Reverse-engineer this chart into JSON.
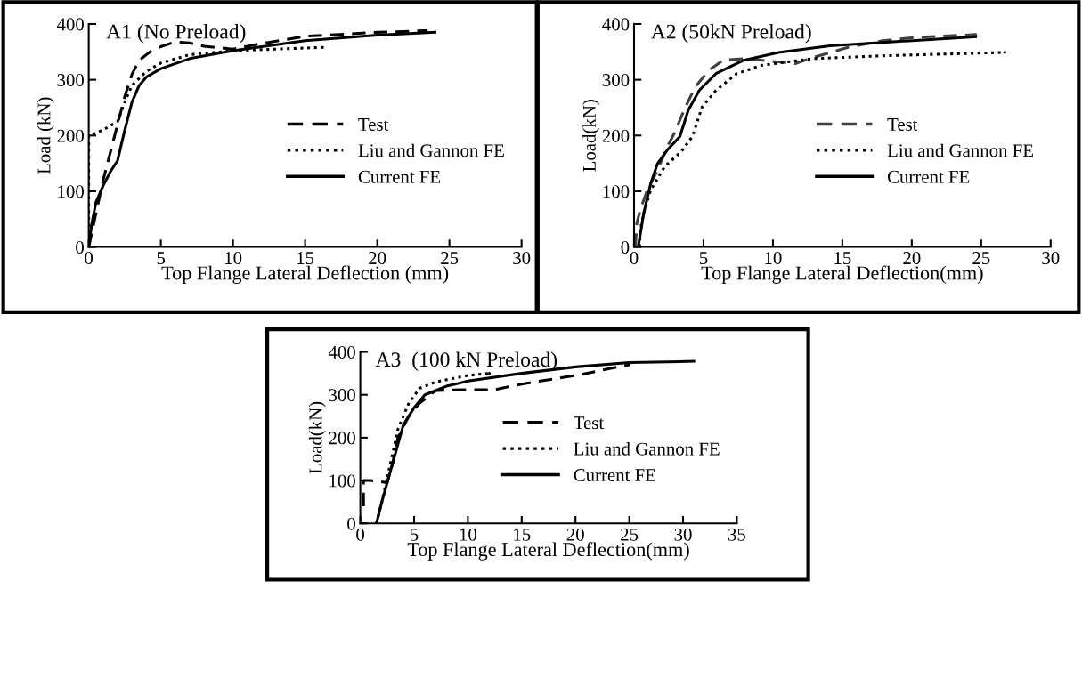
{
  "chart_data": [
    {
      "type": "line",
      "title": "A1 (No Preload)",
      "xlabel": "Top Flange Lateral Deflection (mm)",
      "ylabel": "Load (kN)",
      "xlim": [
        0,
        30
      ],
      "xticks": [
        0,
        5,
        10,
        15,
        20,
        25,
        30
      ],
      "ylim": [
        0,
        400
      ],
      "yticks": [
        0,
        100,
        200,
        300,
        400
      ],
      "legend": "right",
      "grid": false,
      "marker": "none",
      "series": [
        {
          "name": "Test",
          "color": "#000000",
          "line_style": "dashed",
          "x": [
            0,
            0.5,
            1,
            1.5,
            2,
            2.5,
            3,
            3.5,
            4.5,
            6,
            7,
            8,
            10,
            12,
            15,
            20,
            23.4
          ],
          "values": [
            0,
            60,
            120,
            170,
            220,
            270,
            310,
            335,
            355,
            368,
            366,
            360,
            355,
            365,
            378,
            385,
            388
          ]
        },
        {
          "name": "Liu and Gannon FE",
          "color": "#000000",
          "line_style": "dotted",
          "x": [
            0,
            0,
            1,
            2,
            2.5,
            3,
            4,
            5,
            7,
            10,
            13,
            16.2
          ],
          "values": [
            0,
            200,
            210,
            225,
            260,
            290,
            315,
            330,
            345,
            352,
            355,
            358
          ]
        },
        {
          "name": "Current FE",
          "color": "#000000",
          "line_style": "solid",
          "x": [
            0,
            0.2,
            0.5,
            1,
            1.5,
            2,
            2.5,
            3,
            3.5,
            4,
            5,
            7,
            10,
            15,
            20,
            24
          ],
          "values": [
            0,
            40,
            80,
            110,
            135,
            155,
            210,
            260,
            290,
            305,
            320,
            338,
            352,
            370,
            380,
            385
          ]
        }
      ]
    },
    {
      "type": "line",
      "title": "A2 (50kN Preload)",
      "xlabel": "Top Flange Lateral Deflection(mm)",
      "ylabel": "Load(kN)",
      "xlim": [
        0,
        30
      ],
      "xticks": [
        0,
        5,
        10,
        15,
        20,
        25,
        30
      ],
      "ylim": [
        0,
        400
      ],
      "yticks": [
        0,
        100,
        200,
        300,
        400
      ],
      "legend": "right",
      "grid": false,
      "marker": "none",
      "series": [
        {
          "name": "Test",
          "color": "#404040",
          "line_style": "dashed",
          "x": [
            0.1,
            0.2,
            0.45,
            0.95,
            1.7,
            2.4,
            2.9,
            3.7,
            4.4,
            5.4,
            6.4,
            7.9,
            10.4,
            11.6,
            12.9,
            15.4,
            17.9,
            20.3,
            24.6
          ],
          "values": [
            0,
            43,
            67,
            102,
            138,
            180,
            204,
            251,
            287,
            317,
            335,
            338,
            332,
            329,
            340,
            358,
            370,
            376,
            381
          ]
        },
        {
          "name": "Liu and Gannon FE",
          "color": "#000000",
          "line_style": "dotted",
          "x": [
            0.4,
            0.45,
            0.7,
            1.2,
            2.2,
            3.4,
            4.2,
            4.9,
            5.9,
            7.4,
            9.2,
            12.9,
            17.9,
            26.7
          ],
          "values": [
            0,
            31,
            61,
            102,
            144,
            171,
            198,
            251,
            281,
            311,
            326,
            338,
            343,
            349
          ]
        },
        {
          "name": "Current FE",
          "color": "#000000",
          "line_style": "solid",
          "x": [
            0.3,
            0.7,
            1.2,
            1.7,
            2.4,
            3.3,
            3.9,
            4.7,
            5.9,
            7.9,
            10.4,
            14.1,
            17.9,
            24.6
          ],
          "values": [
            0,
            61,
            114,
            150,
            174,
            198,
            245,
            281,
            311,
            335,
            349,
            361,
            367,
            377
          ]
        }
      ]
    },
    {
      "type": "line",
      "title": "A3  (100 kN Preload)",
      "xlabel": "Top Flange Lateral Deflection(mm)",
      "ylabel": "Load(kN)",
      "xlim": [
        0,
        35
      ],
      "xticks": [
        0,
        5,
        10,
        15,
        20,
        25,
        30,
        35
      ],
      "ylim": [
        0,
        400
      ],
      "yticks": [
        0,
        100,
        200,
        300,
        400
      ],
      "legend": "right",
      "grid": false,
      "marker": "none",
      "series": [
        {
          "name": "Test",
          "color": "#000000",
          "line_style": "dashed",
          "x": [
            0.3,
            0.3,
            1,
            2.5,
            3,
            3.5,
            4.5,
            5.5,
            7,
            10,
            12.5,
            15,
            20,
            25
          ],
          "values": [
            40,
            100,
            100,
            95,
            140,
            200,
            250,
            280,
            310,
            312,
            312,
            325,
            345,
            370
          ]
        },
        {
          "name": "Liu and Gannon FE",
          "color": "#000000",
          "line_style": "dotted",
          "x": [
            1.5,
            2,
            2.8,
            3.5,
            4.5,
            5.5,
            7,
            10,
            12
          ],
          "values": [
            0,
            50,
            140,
            220,
            280,
            315,
            330,
            345,
            350
          ]
        },
        {
          "name": "Current FE",
          "color": "#000000",
          "line_style": "solid",
          "x": [
            1.5,
            2,
            3,
            4,
            5,
            6,
            8,
            10,
            15,
            20,
            25,
            31
          ],
          "values": [
            0,
            50,
            140,
            230,
            270,
            300,
            320,
            332,
            350,
            365,
            375,
            378
          ]
        }
      ]
    }
  ]
}
